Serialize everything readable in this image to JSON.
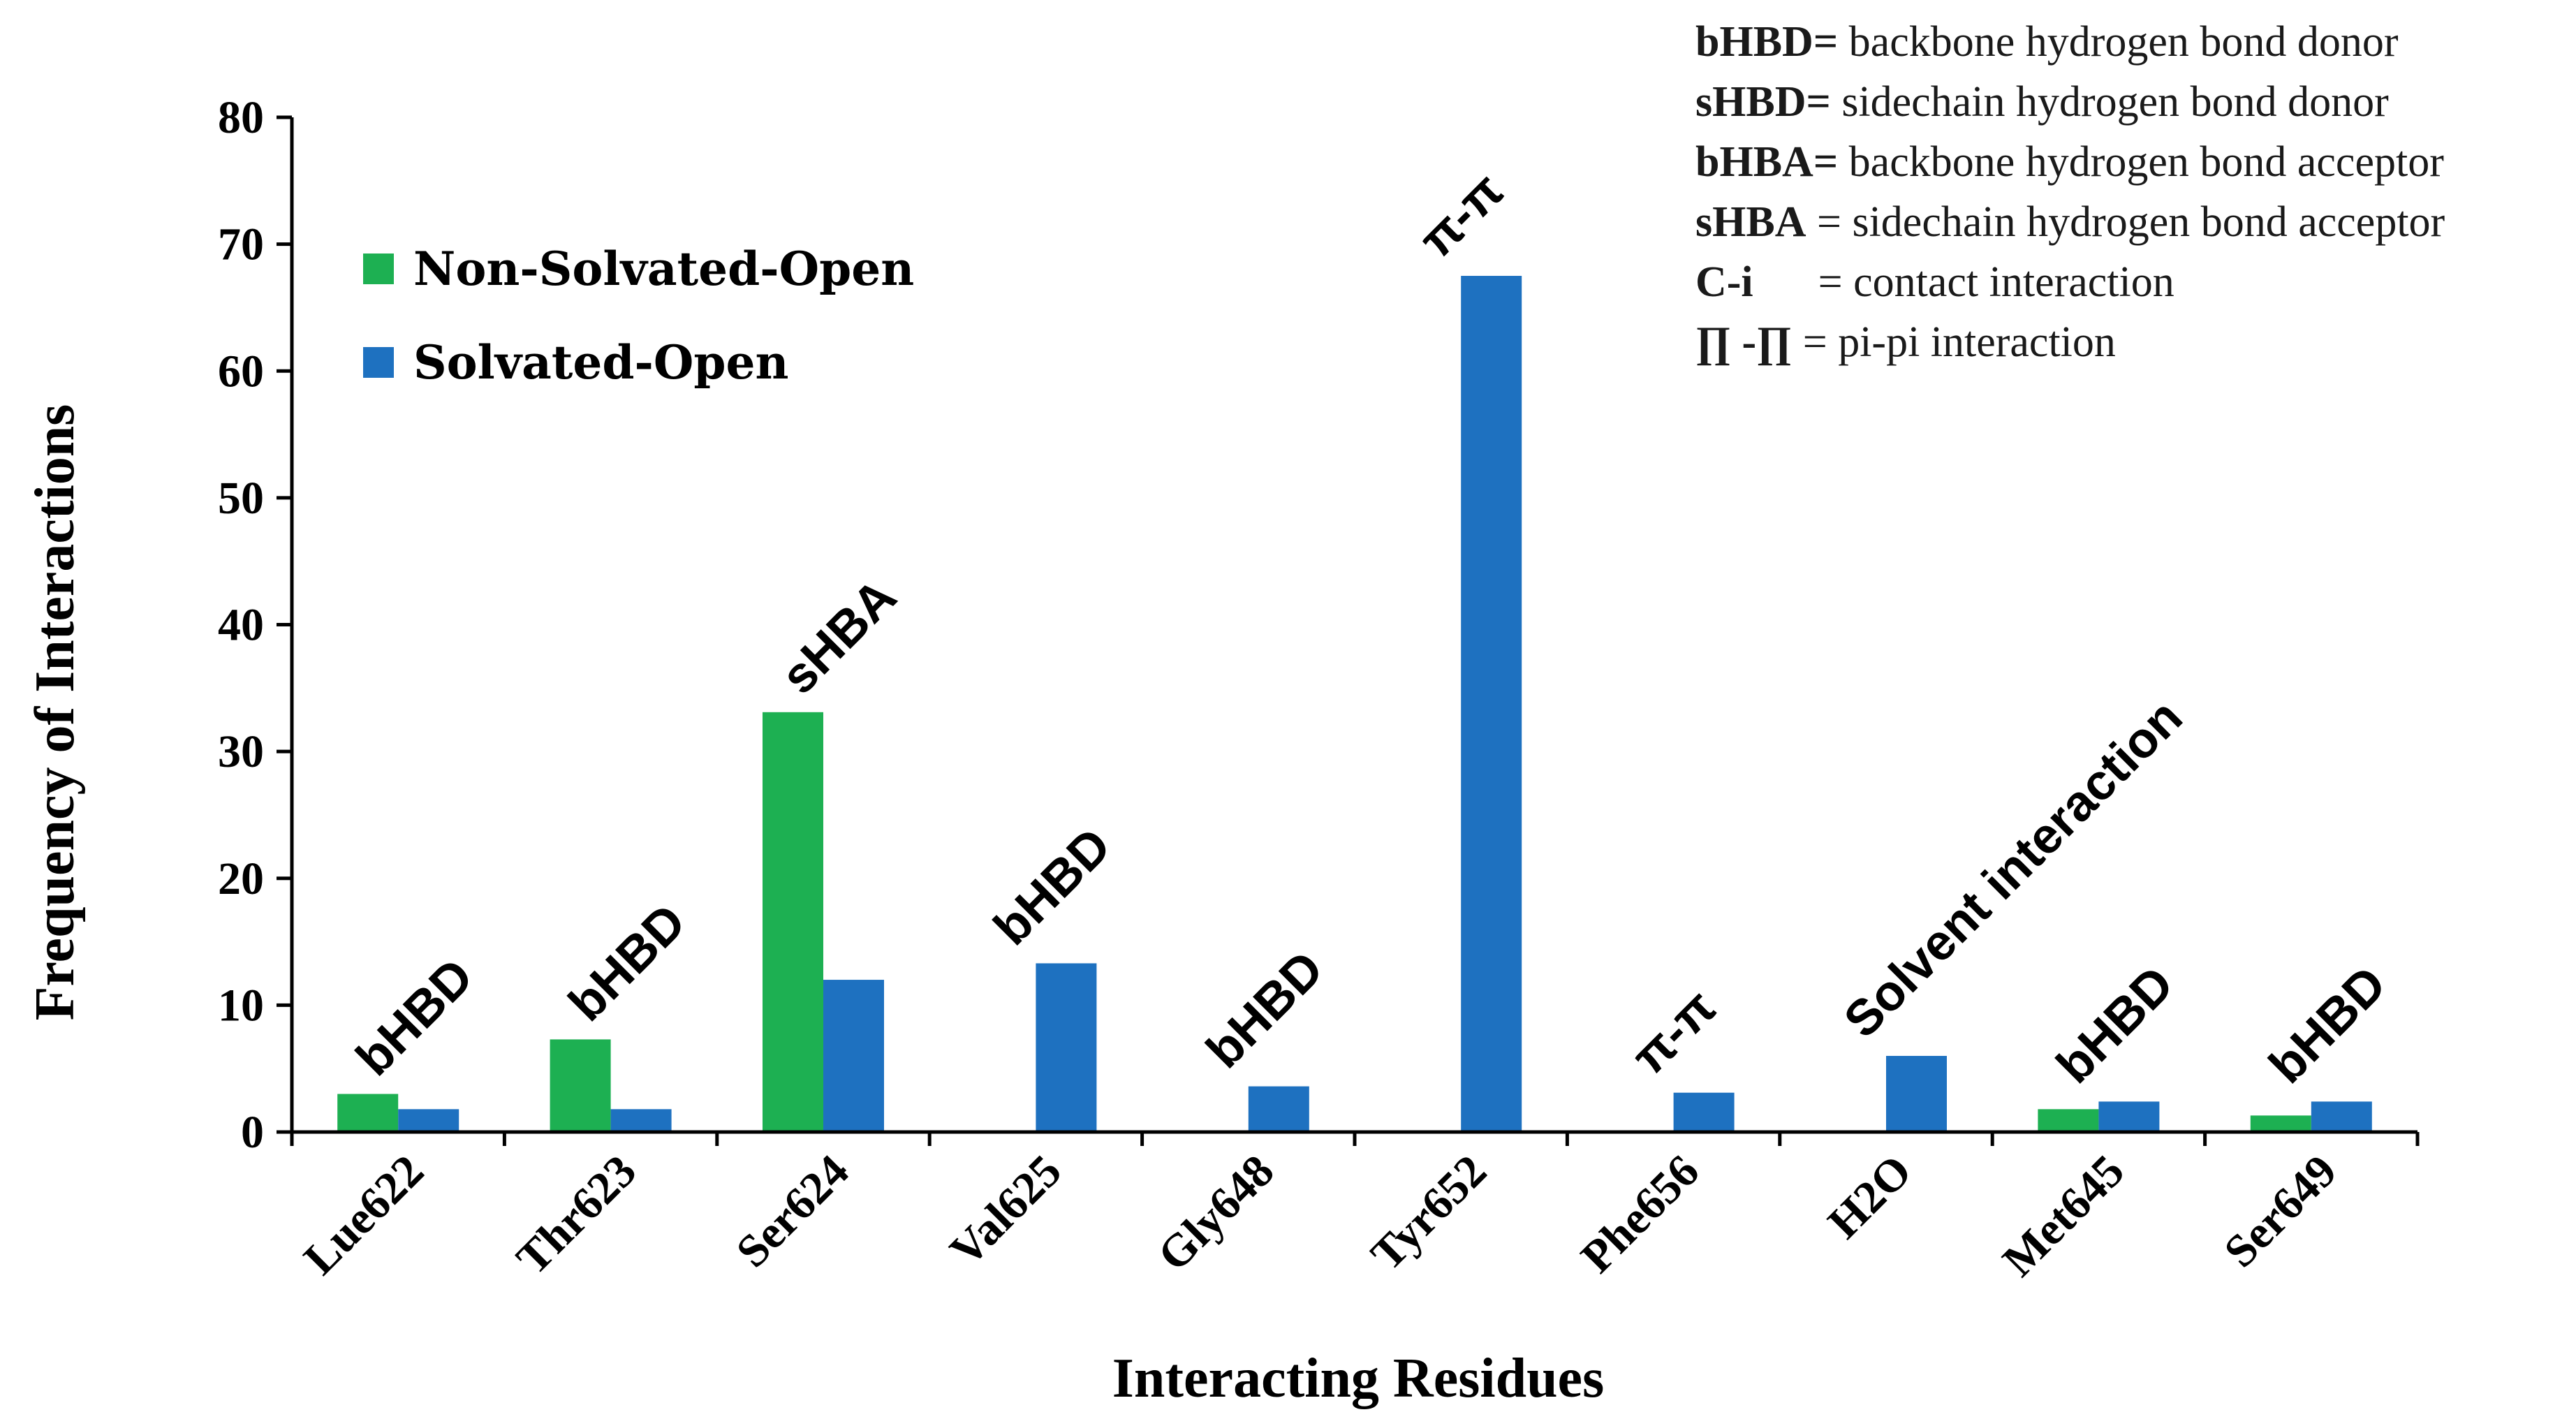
{
  "chart_data": {
    "type": "bar",
    "title": "",
    "xlabel": "Interacting Residues",
    "ylabel": "Frequency of Interactions",
    "ylim": [
      0,
      80
    ],
    "yticks": [
      0,
      10,
      20,
      30,
      40,
      50,
      60,
      70,
      80
    ],
    "grid": false,
    "legend_position": "top-left",
    "categories": [
      "Lue622",
      "Thr623",
      "Ser624",
      "Val625",
      "Gly648",
      "Tyr652",
      "Phe656",
      "H2O",
      "Met645",
      "Ser649"
    ],
    "series": [
      {
        "name": "Non-Solvated-Open",
        "color": "#1db052",
        "values": [
          3.0,
          7.3,
          33.1,
          0,
          0,
          0,
          0,
          0,
          1.8,
          1.3
        ]
      },
      {
        "name": "Solvated-Open",
        "color": "#1e71c0",
        "values": [
          1.8,
          1.8,
          12.0,
          13.3,
          3.6,
          67.5,
          3.1,
          6.0,
          2.4,
          2.4
        ]
      }
    ],
    "annotations": [
      "bHBD",
      "bHBD",
      "sHBA",
      "bHBD",
      "bHBD",
      "π-π",
      "π-π",
      "Solvent interaction",
      "bHBD",
      "bHBD"
    ],
    "notes": [
      {
        "key": "bHBD=",
        "text": " backbone hydrogen bond donor"
      },
      {
        "key": "sHBD=",
        "text": " sidechain hydrogen bond donor"
      },
      {
        "key": "bHBA=",
        "text": " backbone hydrogen bond acceptor"
      },
      {
        "key": "sHBA",
        "text": " = sidechain hydrogen bond acceptor"
      },
      {
        "key": "C-i",
        "text": "      = contact interaction"
      },
      {
        "key": "∏ -∏",
        "text": " = pi-pi interaction"
      }
    ]
  }
}
